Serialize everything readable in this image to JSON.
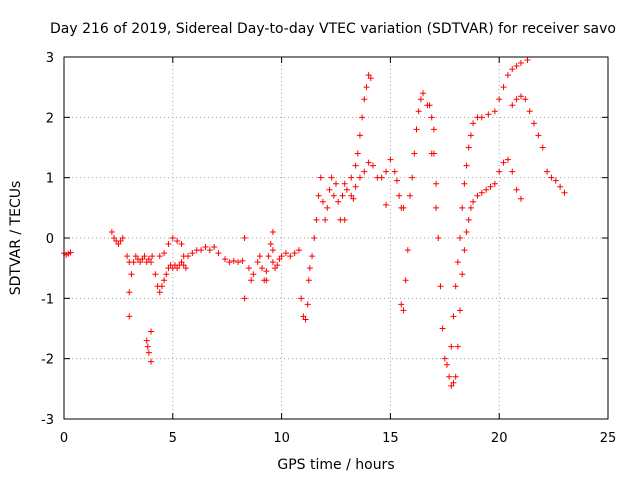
{
  "chart_data": {
    "type": "scatter",
    "title": "Day 216 of 2019, Sidereal Day-to-day VTEC variation (SDTVAR) for receiver savo",
    "xlabel": "GPS time / hours",
    "ylabel": "SDTVAR / TECUs",
    "xlim": [
      0,
      25
    ],
    "ylim": [
      -3,
      3
    ],
    "xticks": [
      0,
      5,
      10,
      15,
      20,
      25
    ],
    "yticks": [
      -3,
      -2,
      -1,
      0,
      1,
      2,
      3
    ],
    "xtick_labels": [
      "0",
      "5",
      "10",
      "15",
      "20",
      "25"
    ],
    "ytick_labels": [
      "-3",
      "-2",
      "-1",
      "0",
      "1",
      "2",
      "3"
    ],
    "grid": true,
    "marker": "plus",
    "color": "#ff0000",
    "series": [
      {
        "values": [
          [
            0.0,
            -0.25
          ],
          [
            0.1,
            -0.28
          ],
          [
            0.2,
            -0.26
          ],
          [
            0.3,
            -0.24
          ],
          [
            2.2,
            0.1
          ],
          [
            2.3,
            0.0
          ],
          [
            2.4,
            -0.05
          ],
          [
            2.5,
            -0.1
          ],
          [
            2.6,
            -0.05
          ],
          [
            2.7,
            0.0
          ],
          [
            2.9,
            -0.3
          ],
          [
            3.0,
            -0.4
          ],
          [
            3.0,
            -0.9
          ],
          [
            3.0,
            -1.3
          ],
          [
            3.1,
            -0.6
          ],
          [
            3.2,
            -0.4
          ],
          [
            3.3,
            -0.3
          ],
          [
            3.4,
            -0.35
          ],
          [
            3.5,
            -0.4
          ],
          [
            3.6,
            -0.35
          ],
          [
            3.7,
            -0.3
          ],
          [
            3.8,
            -0.4
          ],
          [
            3.9,
            -0.35
          ],
          [
            4.0,
            -0.4
          ],
          [
            4.05,
            -0.3
          ],
          [
            3.8,
            -1.7
          ],
          [
            3.85,
            -1.8
          ],
          [
            3.9,
            -1.9
          ],
          [
            4.0,
            -2.05
          ],
          [
            4.0,
            -1.55
          ],
          [
            4.2,
            -0.6
          ],
          [
            4.3,
            -0.8
          ],
          [
            4.4,
            -0.9
          ],
          [
            4.5,
            -0.8
          ],
          [
            4.6,
            -0.7
          ],
          [
            4.7,
            -0.6
          ],
          [
            4.8,
            -0.5
          ],
          [
            4.9,
            -0.45
          ],
          [
            5.0,
            -0.5
          ],
          [
            5.1,
            -0.45
          ],
          [
            5.2,
            -0.5
          ],
          [
            5.3,
            -0.45
          ],
          [
            5.4,
            -0.4
          ],
          [
            5.5,
            -0.45
          ],
          [
            5.6,
            -0.5
          ],
          [
            4.4,
            -0.3
          ],
          [
            4.6,
            -0.25
          ],
          [
            4.8,
            -0.1
          ],
          [
            5.0,
            0.0
          ],
          [
            5.2,
            -0.05
          ],
          [
            5.4,
            -0.1
          ],
          [
            5.5,
            -0.3
          ],
          [
            5.7,
            -0.3
          ],
          [
            5.9,
            -0.25
          ],
          [
            6.1,
            -0.2
          ],
          [
            6.3,
            -0.2
          ],
          [
            6.5,
            -0.15
          ],
          [
            6.7,
            -0.2
          ],
          [
            6.9,
            -0.15
          ],
          [
            7.1,
            -0.25
          ],
          [
            7.4,
            -0.35
          ],
          [
            7.6,
            -0.4
          ],
          [
            7.8,
            -0.38
          ],
          [
            8.0,
            -0.4
          ],
          [
            8.2,
            -0.38
          ],
          [
            8.3,
            0.0
          ],
          [
            8.5,
            -0.5
          ],
          [
            8.6,
            -0.7
          ],
          [
            8.7,
            -0.6
          ],
          [
            8.9,
            -0.4
          ],
          [
            9.0,
            -0.3
          ],
          [
            9.1,
            -0.5
          ],
          [
            9.2,
            -0.7
          ],
          [
            9.3,
            -0.55
          ],
          [
            9.4,
            -0.3
          ],
          [
            9.5,
            -0.1
          ],
          [
            9.6,
            -0.2
          ],
          [
            9.6,
            -0.4
          ],
          [
            9.7,
            -0.5
          ],
          [
            9.8,
            -0.45
          ],
          [
            9.9,
            -0.35
          ],
          [
            10.0,
            -0.3
          ],
          [
            10.2,
            -0.25
          ],
          [
            10.4,
            -0.3
          ],
          [
            10.6,
            -0.25
          ],
          [
            10.8,
            -0.2
          ],
          [
            10.9,
            -1.0
          ],
          [
            11.0,
            -1.3
          ],
          [
            11.1,
            -1.35
          ],
          [
            11.2,
            -1.1
          ],
          [
            11.25,
            -0.7
          ],
          [
            11.3,
            -0.5
          ],
          [
            11.4,
            -0.3
          ],
          [
            11.5,
            0.0
          ],
          [
            11.6,
            0.3
          ],
          [
            11.7,
            0.7
          ],
          [
            11.8,
            1.0
          ],
          [
            11.9,
            0.6
          ],
          [
            12.0,
            0.3
          ],
          [
            12.1,
            0.5
          ],
          [
            12.2,
            0.8
          ],
          [
            12.3,
            1.0
          ],
          [
            12.4,
            0.7
          ],
          [
            12.5,
            0.9
          ],
          [
            12.6,
            0.6
          ],
          [
            12.7,
            0.3
          ],
          [
            12.8,
            0.7
          ],
          [
            12.9,
            0.9
          ],
          [
            13.0,
            0.8
          ],
          [
            13.2,
            1.0
          ],
          [
            13.4,
            1.2
          ],
          [
            13.5,
            1.4
          ],
          [
            13.6,
            1.7
          ],
          [
            13.7,
            2.0
          ],
          [
            13.8,
            2.3
          ],
          [
            13.9,
            2.5
          ],
          [
            14.0,
            2.7
          ],
          [
            14.1,
            2.65
          ],
          [
            13.2,
            0.7
          ],
          [
            13.4,
            0.85
          ],
          [
            13.6,
            1.0
          ],
          [
            13.8,
            1.1
          ],
          [
            14.0,
            1.25
          ],
          [
            14.2,
            1.2
          ],
          [
            14.4,
            1.0
          ],
          [
            14.6,
            1.0
          ],
          [
            14.8,
            1.1
          ],
          [
            15.0,
            1.3
          ],
          [
            15.2,
            1.1
          ],
          [
            15.3,
            0.95
          ],
          [
            15.4,
            0.7
          ],
          [
            15.5,
            0.5
          ],
          [
            15.6,
            0.5
          ],
          [
            15.5,
            -1.1
          ],
          [
            15.6,
            -1.2
          ],
          [
            15.7,
            -0.7
          ],
          [
            15.8,
            -0.2
          ],
          [
            15.9,
            0.7
          ],
          [
            16.0,
            1.0
          ],
          [
            16.1,
            1.4
          ],
          [
            16.2,
            1.8
          ],
          [
            16.3,
            2.1
          ],
          [
            16.4,
            2.3
          ],
          [
            16.5,
            2.4
          ],
          [
            16.8,
            2.2
          ],
          [
            16.9,
            2.0
          ],
          [
            17.0,
            1.8
          ],
          [
            17.0,
            1.4
          ],
          [
            17.1,
            0.9
          ],
          [
            17.1,
            0.5
          ],
          [
            17.2,
            0.0
          ],
          [
            17.3,
            -0.8
          ],
          [
            17.4,
            -1.5
          ],
          [
            17.5,
            -2.0
          ],
          [
            17.6,
            -2.1
          ],
          [
            17.8,
            -1.8
          ],
          [
            17.9,
            -1.3
          ],
          [
            18.0,
            -0.8
          ],
          [
            18.1,
            -0.4
          ],
          [
            18.2,
            0.0
          ],
          [
            18.3,
            0.5
          ],
          [
            18.4,
            0.9
          ],
          [
            18.5,
            1.2
          ],
          [
            18.6,
            1.5
          ],
          [
            18.7,
            1.7
          ],
          [
            18.8,
            1.9
          ],
          [
            19.0,
            2.0
          ],
          [
            19.2,
            2.0
          ],
          [
            19.5,
            2.05
          ],
          [
            19.8,
            2.1
          ],
          [
            20.0,
            2.3
          ],
          [
            20.2,
            2.5
          ],
          [
            20.4,
            2.7
          ],
          [
            20.6,
            2.8
          ],
          [
            20.8,
            2.85
          ],
          [
            21.0,
            2.9
          ],
          [
            21.3,
            2.95
          ],
          [
            17.7,
            -2.3
          ],
          [
            17.8,
            -2.45
          ],
          [
            17.9,
            -2.4
          ],
          [
            18.0,
            -2.3
          ],
          [
            18.1,
            -1.8
          ],
          [
            18.2,
            -1.2
          ],
          [
            18.3,
            -0.6
          ],
          [
            18.4,
            -0.2
          ],
          [
            18.5,
            0.1
          ],
          [
            18.6,
            0.3
          ],
          [
            18.7,
            0.5
          ],
          [
            18.8,
            0.6
          ],
          [
            19.0,
            0.7
          ],
          [
            19.2,
            0.75
          ],
          [
            19.4,
            0.8
          ],
          [
            19.6,
            0.85
          ],
          [
            19.8,
            0.9
          ],
          [
            20.0,
            1.1
          ],
          [
            20.2,
            1.25
          ],
          [
            20.4,
            1.3
          ],
          [
            20.6,
            1.1
          ],
          [
            20.8,
            0.8
          ],
          [
            21.0,
            0.65
          ],
          [
            20.6,
            2.2
          ],
          [
            20.8,
            2.3
          ],
          [
            21.0,
            2.35
          ],
          [
            21.2,
            2.3
          ],
          [
            21.4,
            2.1
          ],
          [
            21.6,
            1.9
          ],
          [
            21.8,
            1.7
          ],
          [
            22.0,
            1.5
          ],
          [
            22.2,
            1.1
          ],
          [
            22.4,
            1.0
          ],
          [
            22.6,
            0.95
          ],
          [
            22.8,
            0.85
          ],
          [
            23.0,
            0.75
          ],
          [
            8.3,
            -1.0
          ],
          [
            9.3,
            -0.7
          ],
          [
            9.6,
            0.1
          ],
          [
            12.9,
            0.3
          ],
          [
            13.3,
            0.65
          ],
          [
            14.8,
            0.55
          ],
          [
            16.7,
            2.2
          ],
          [
            16.9,
            1.4
          ]
        ]
      }
    ]
  }
}
